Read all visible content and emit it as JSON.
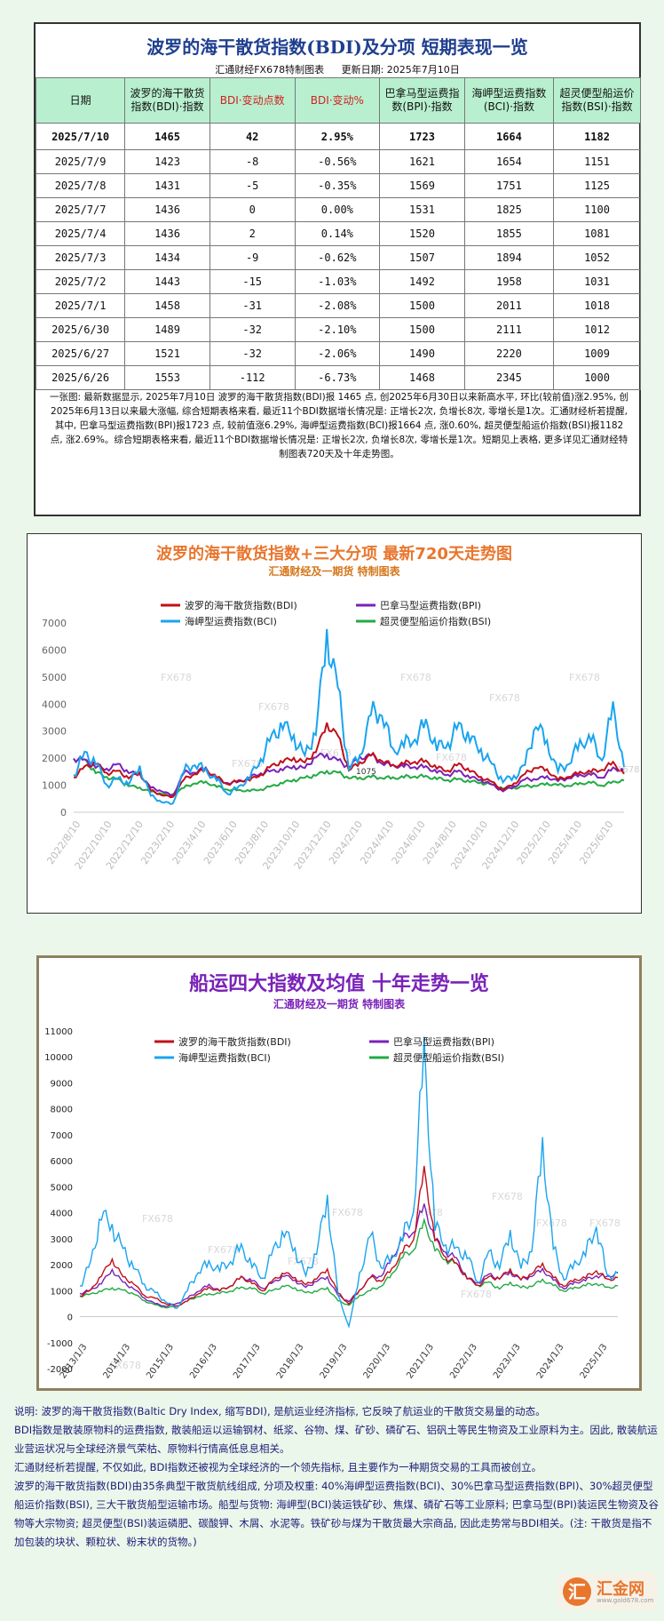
{
  "table": {
    "title": "波罗的海干散货指数(BDI)及分项 短期表现一览",
    "maker": "汇通财经FX678特制图表",
    "update": "更新日期: 2025年7月10日",
    "headers": [
      {
        "l1": "日期",
        "l2": ""
      },
      {
        "l1": "波罗的海干散货",
        "l2": "指数(BDI)·指数"
      },
      {
        "l1": "BDI·变动点数",
        "l2": ""
      },
      {
        "l1": "BDI·变动%",
        "l2": ""
      },
      {
        "l1": "巴拿马型运费指",
        "l2": "数(BPI)·指数"
      },
      {
        "l1": "海岬型运费指数",
        "l2": "(BCI)·指数"
      },
      {
        "l1": "超灵便型船运价",
        "l2": "指数(BSI)·指数"
      }
    ],
    "rows": [
      [
        "2025/7/10",
        "1465",
        "42",
        "2.95%",
        "1723",
        "1664",
        "1182"
      ],
      [
        "2025/7/9",
        "1423",
        "-8",
        "-0.56%",
        "1621",
        "1654",
        "1151"
      ],
      [
        "2025/7/8",
        "1431",
        "-5",
        "-0.35%",
        "1569",
        "1751",
        "1125"
      ],
      [
        "2025/7/7",
        "1436",
        "0",
        "0.00%",
        "1531",
        "1825",
        "1100"
      ],
      [
        "2025/7/4",
        "1436",
        "2",
        "0.14%",
        "1520",
        "1855",
        "1081"
      ],
      [
        "2025/7/3",
        "1434",
        "-9",
        "-0.62%",
        "1507",
        "1894",
        "1052"
      ],
      [
        "2025/7/2",
        "1443",
        "-15",
        "-1.03%",
        "1492",
        "1958",
        "1031"
      ],
      [
        "2025/7/1",
        "1458",
        "-31",
        "-2.08%",
        "1500",
        "2011",
        "1018"
      ],
      [
        "2025/6/30",
        "1489",
        "-32",
        "-2.10%",
        "1500",
        "2111",
        "1012"
      ],
      [
        "2025/6/27",
        "1521",
        "-32",
        "-2.06%",
        "1490",
        "2220",
        "1009"
      ],
      [
        "2025/6/26",
        "1553",
        "-112",
        "-6.73%",
        "1468",
        "2345",
        "1000"
      ]
    ],
    "note": "一张图: 最新数据显示, 2025年7月10日 波罗的海干散货指数(BDI)报 1465 点, 创2025年6月30日以来新高水平, 环比(较前值)涨2.95%, 创2025年6月13日以来最大涨幅, 综合短期表格来看, 最近11个BDI数据增长情况是: 正增长2次, 负增长8次, 零增长是1次。汇通财经析若提醒, 其中, 巴拿马型运费指数(BPI)报1723 点, 较前值涨6.29%, 海岬型运费指数(BCI)报1664 点, 涨0.60%, 超灵便型船运价指数(BSI)报1182 点, 涨2.69%。综合短期表格来看, 最近11个BDI数据增长情况是: 正增长2次, 负增长8次, 零增长是1次。短期见上表格, 更多详见汇通财经特制图表720天及十年走势图。"
  },
  "colors": {
    "bdi": "#c0101a",
    "bpi": "#7a22b8",
    "bci": "#1aa4ef",
    "bsi": "#22aa44",
    "title1": "#e8762d",
    "subtitle1": "#d6761a",
    "title2": "#7a22b8",
    "subtitle2": "#7a22b8"
  },
  "chart_data": [
    {
      "type": "line",
      "title": "波罗的海干散货指数+三大分项 最新720天走势图",
      "subtitle": "汇通财经及一期货 特制图表",
      "ylim": [
        0,
        7000
      ],
      "yticks": [
        "0",
        "1000",
        "2000",
        "3000",
        "4000",
        "5000",
        "6000",
        "7000"
      ],
      "xticks": [
        "2022/8/10",
        "2022/10/10",
        "2022/12/10",
        "2023/2/10",
        "2023/4/10",
        "2023/6/10",
        "2023/8/10",
        "2023/10/10",
        "2023/12/10",
        "2024/2/10",
        "2024/4/10",
        "2024/6/10",
        "2024/8/10",
        "2024/10/10",
        "2024/12/10",
        "2025/2/10",
        "2025/4/10",
        "2025/6/10"
      ],
      "grid": false,
      "legend_position": "top",
      "watermark": "FX678",
      "annotation": "1075",
      "last_label": "1678",
      "series": [
        {
          "name": "波罗的海干散货指数(BDI)",
          "key": "bdi",
          "values": [
            1300,
            1650,
            1850,
            1450,
            1500,
            1300,
            1450,
            800,
            650,
            550,
            1200,
            1450,
            1550,
            1300,
            1050,
            1150,
            1200,
            1400,
            1700,
            1900,
            2000,
            1800,
            2300,
            3250,
            2800,
            1600,
            1800,
            2100,
            1950,
            1700,
            1800,
            1900,
            1850,
            1650,
            1550,
            1750,
            1550,
            1300,
            1100,
            850,
            1050,
            1400,
            1700,
            1550,
            1200,
            1350,
            1450,
            1500,
            1600,
            1800,
            1420
          ]
        },
        {
          "name": "巴拿马型运费指数(BPI)",
          "key": "bpi",
          "values": [
            2000,
            1900,
            1700,
            1600,
            1750,
            1500,
            1400,
            900,
            800,
            600,
            1450,
            1500,
            1600,
            1200,
            1100,
            1100,
            1300,
            1450,
            1500,
            1600,
            1700,
            1600,
            2100,
            2100,
            1900,
            1700,
            2000,
            2100,
            1850,
            1700,
            1700,
            1700,
            1650,
            1500,
            1400,
            1500,
            1300,
            1200,
            1000,
            800,
            950,
            1200,
            1250,
            1300,
            1150,
            1300,
            1350,
            1400,
            1300,
            1600,
            1550
          ]
        },
        {
          "name": "海岬型运费指数(BCI)",
          "key": "bci",
          "values": [
            1400,
            2100,
            1900,
            1000,
            1200,
            1100,
            1650,
            600,
            400,
            300,
            1500,
            1850,
            1500,
            1200,
            700,
            900,
            1300,
            2000,
            2700,
            3300,
            2800,
            2000,
            3100,
            6500,
            4500,
            1700,
            2000,
            3600,
            3800,
            2200,
            2500,
            2800,
            3200,
            2400,
            2600,
            3100,
            2800,
            2300,
            1700,
            1200,
            1300,
            1700,
            3400,
            2500,
            1500,
            1900,
            2500,
            2700,
            2000,
            3800,
            1670
          ]
        },
        {
          "name": "超灵便型船运价指数(BSI)",
          "key": "bsi",
          "values": [
            2000,
            1900,
            1500,
            1300,
            1200,
            1000,
            900,
            750,
            700,
            650,
            900,
            1100,
            1100,
            950,
            850,
            800,
            800,
            850,
            950,
            1100,
            1200,
            1250,
            1400,
            1500,
            1450,
            1300,
            1250,
            1300,
            1300,
            1250,
            1300,
            1350,
            1300,
            1250,
            1200,
            1200,
            1150,
            1100,
            1000,
            900,
            900,
            950,
            1000,
            1050,
            1000,
            1000,
            1050,
            1100,
            1000,
            1100,
            1180
          ]
        }
      ]
    },
    {
      "type": "line",
      "title": "船运四大指数及均值 十年走势一览",
      "subtitle": "汇通财经及一期货 特制图表",
      "ylim": [
        -2000,
        11000
      ],
      "yticks": [
        "-2000",
        "-1000",
        "0",
        "1000",
        "2000",
        "3000",
        "4000",
        "5000",
        "6000",
        "7000",
        "8000",
        "9000",
        "10000",
        "11000"
      ],
      "xticks": [
        "2013/1/3",
        "2014/1/3",
        "2015/1/3",
        "2016/1/3",
        "2017/1/3",
        "2018/1/3",
        "2019/1/3",
        "2020/1/3",
        "2021/1/3",
        "2022/1/3",
        "2023/1/3",
        "2024/1/3",
        "2025/1/3"
      ],
      "grid": false,
      "legend_position": "top",
      "watermark": "FX678",
      "series": [
        {
          "name": "波罗的海干散货指数(BDI)",
          "key": "bdi",
          "values": [
            800,
            1000,
            1600,
            2200,
            1500,
            1300,
            800,
            700,
            500,
            400,
            600,
            900,
            1100,
            1000,
            1200,
            1500,
            1300,
            1000,
            1400,
            1700,
            1500,
            1200,
            1500,
            1800,
            900,
            500,
            1000,
            1500,
            1400,
            1800,
            2500,
            3000,
            5600,
            3000,
            2300,
            2000,
            1500,
            1200,
            1500,
            1500,
            1800,
            1400,
            1700,
            2000,
            1500,
            1200,
            1400,
            1500,
            1800,
            1400,
            1500
          ]
        },
        {
          "name": "巴拿马型运费指数(BPI)",
          "key": "bpi",
          "values": [
            900,
            1000,
            1300,
            1800,
            1300,
            1100,
            700,
            500,
            400,
            500,
            700,
            1000,
            1200,
            1000,
            1200,
            1500,
            1400,
            1100,
            1300,
            1600,
            1400,
            1100,
            1400,
            1500,
            800,
            600,
            1000,
            1500,
            1600,
            2200,
            3000,
            3300,
            4200,
            3000,
            2500,
            2200,
            1500,
            1300,
            1600,
            1500,
            1700,
            1400,
            1600,
            1800,
            1400,
            1100,
            1300,
            1400,
            1600,
            1500,
            1700
          ]
        },
        {
          "name": "海岬型运费指数(BCI)",
          "key": "bci",
          "values": [
            1200,
            2000,
            4000,
            3500,
            2500,
            2000,
            1200,
            900,
            600,
            300,
            1000,
            1800,
            2000,
            1800,
            2200,
            2600,
            2000,
            1500,
            2500,
            3300,
            2600,
            1500,
            2600,
            4500,
            800,
            -400,
            1600,
            3100,
            2000,
            2200,
            3000,
            4200,
            10000,
            3500,
            2800,
            2500,
            2400,
            1300,
            2400,
            2000,
            3200,
            1800,
            2700,
            6500,
            2600,
            1500,
            2000,
            2400,
            3600,
            1500,
            1660
          ]
        },
        {
          "name": "超灵便型船运价指数(BSI)",
          "key": "bsi",
          "values": [
            800,
            850,
            1000,
            1100,
            1000,
            900,
            600,
            450,
            350,
            400,
            600,
            800,
            850,
            900,
            1000,
            1100,
            1100,
            900,
            1000,
            1200,
            1100,
            900,
            1000,
            1100,
            600,
            450,
            800,
            1000,
            1200,
            1600,
            2300,
            2600,
            3600,
            2600,
            2200,
            2000,
            1500,
            1200,
            1300,
            1100,
            1300,
            1100,
            1200,
            1400,
            1200,
            1000,
            1100,
            1200,
            1300,
            1100,
            1180
          ]
        }
      ]
    }
  ],
  "bottom": {
    "p1": "说明: 波罗的海干散货指数(Baltic Dry Index, 缩写BDI), 是航运业经济指标, 它反映了航运业的干散货交易量的动态。",
    "p2": "BDI指数是散装原物料的运费指数, 散装船运以运输钢材、纸浆、谷物、煤、矿砂、磷矿石、铝矾土等民生物资及工业原料为主。因此, 散装航运业营运状况与全球经济景气荣枯、原物料行情高低息息相关。",
    "p3": "汇通财经析若提醒, 不仅如此, BDI指数还被视为全球经济的一个领先指标, 且主要作为一种期货交易的工具而被创立。",
    "p4": "波罗的海干散货指数(BDI)由35条典型干散货航线组成, 分项及权重: 40%海岬型运费指数(BCI)、30%巴拿马型运费指数(BPI)、30%超灵便型船运价指数(BSI), 三大干散货船型运输市场。船型与货物: 海岬型(BCI)装运铁矿砂、焦煤、磷矿石等工业原料; 巴拿马型(BPI)装运民生物资及谷物等大宗物资; 超灵便型(BSI)装运磷肥、碳酸钾、木屑、水泥等。铁矿砂与煤为干散货最大宗商品, 因此走势常与BDI相关。(注: 干散货是指不加包装的块状、颗粒状、粉末状的货物。)"
  },
  "logo": {
    "mark": "汇",
    "name": "汇金网",
    "url": "www.gold678.com"
  }
}
